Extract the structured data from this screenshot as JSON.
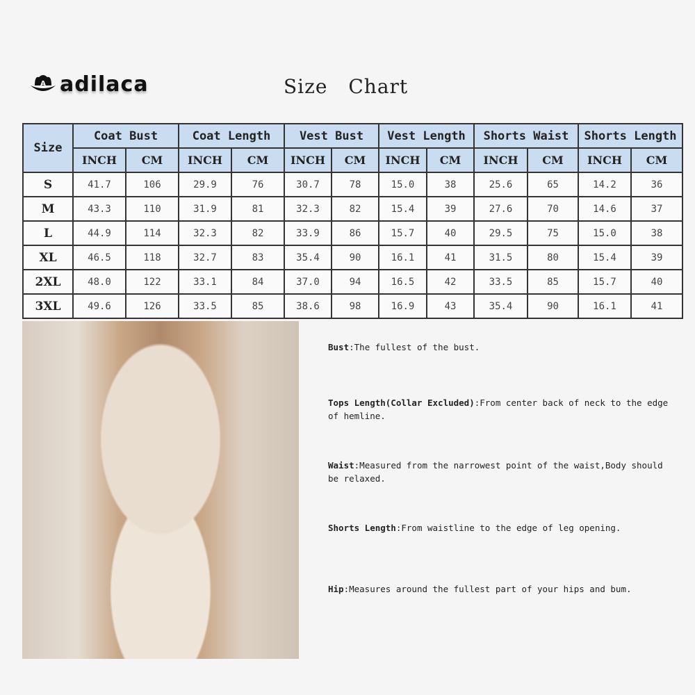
{
  "brand": {
    "name": "adilaca"
  },
  "title": "Size Chart",
  "table": {
    "size_header": "Size",
    "groups": [
      "Coat Bust",
      "Coat Length",
      "Vest Bust",
      "Vest Length",
      "Shorts Waist",
      "Shorts Length"
    ],
    "units": [
      "INCH",
      "CM"
    ],
    "rows": [
      {
        "size": "S",
        "values": [
          "41.7",
          "106",
          "29.9",
          "76",
          "30.7",
          "78",
          "15.0",
          "38",
          "25.6",
          "65",
          "14.2",
          "36"
        ]
      },
      {
        "size": "M",
        "values": [
          "43.3",
          "110",
          "31.9",
          "81",
          "32.3",
          "82",
          "15.4",
          "39",
          "27.6",
          "70",
          "14.6",
          "37"
        ]
      },
      {
        "size": "L",
        "values": [
          "44.9",
          "114",
          "32.3",
          "82",
          "33.9",
          "86",
          "15.7",
          "40",
          "29.5",
          "75",
          "15.0",
          "38"
        ]
      },
      {
        "size": "XL",
        "values": [
          "46.5",
          "118",
          "32.7",
          "83",
          "35.4",
          "90",
          "16.1",
          "41",
          "31.5",
          "80",
          "15.4",
          "39"
        ]
      },
      {
        "size": "2XL",
        "values": [
          "48.0",
          "122",
          "33.1",
          "84",
          "37.0",
          "94",
          "16.5",
          "42",
          "33.5",
          "85",
          "15.7",
          "40"
        ]
      },
      {
        "size": "3XL",
        "values": [
          "49.6",
          "126",
          "33.5",
          "85",
          "38.6",
          "98",
          "16.9",
          "43",
          "35.4",
          "90",
          "16.1",
          "41"
        ]
      }
    ]
  },
  "notes": [
    {
      "term": "Bust",
      "text": "The fullest of the bust."
    },
    {
      "term": "Tops Length(Collar Excluded)",
      "text": "From center back of neck to the edge of hemline."
    },
    {
      "term": "Waist",
      "text": "Measured from the narrowest point of the waist,Body should be relaxed."
    },
    {
      "term": "Shorts Length",
      "text": "From waistline to the edge of leg opening."
    },
    {
      "term": "Hip",
      "text": "Measures around the fullest part of your hips and bum."
    }
  ],
  "colors": {
    "header_bg": "#c9dcf0",
    "border": "#333333"
  }
}
